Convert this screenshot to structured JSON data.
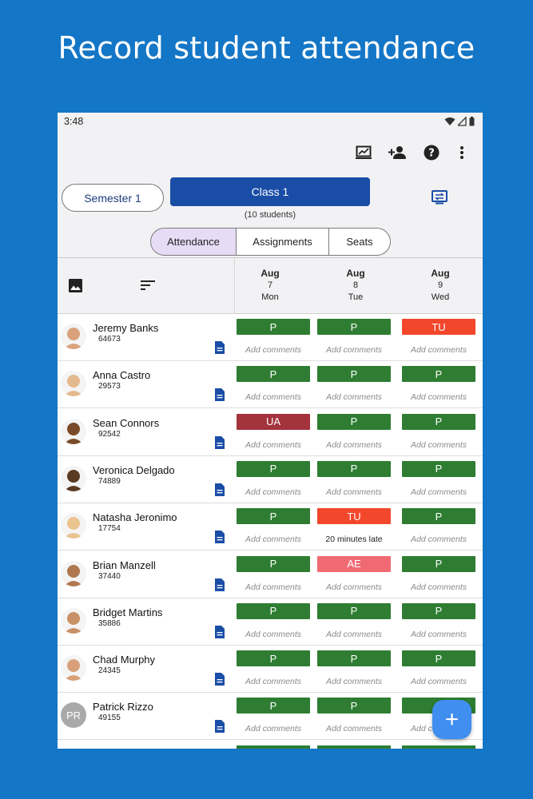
{
  "headline": "Record student attendance",
  "status_bar": {
    "time": "3:48"
  },
  "toolbar": {
    "icons": [
      "report-chart-icon",
      "add-person-icon",
      "help-icon",
      "more-vert-icon"
    ]
  },
  "selectors": {
    "semester": "Semester 1",
    "class": "Class 1",
    "student_count": "(10 students)"
  },
  "tabs": [
    {
      "label": "Attendance",
      "active": true
    },
    {
      "label": "Assignments",
      "active": false
    },
    {
      "label": "Seats",
      "active": false
    }
  ],
  "dates": [
    {
      "month": "Aug",
      "day": "7",
      "weekday": "Mon"
    },
    {
      "month": "Aug",
      "day": "8",
      "weekday": "Tue"
    },
    {
      "month": "Aug",
      "day": "9",
      "weekday": "Wed"
    }
  ],
  "status_colors": {
    "P": "#2e7d32",
    "TU": "#f2472b",
    "UA": "#a3333d",
    "AE": "#f06a74"
  },
  "students": [
    {
      "name": "Jeremy Banks",
      "id": "64673",
      "avatar": "photo",
      "avatar_color": "#d9a27c",
      "days": [
        {
          "status": "P",
          "comment": "Add comments"
        },
        {
          "status": "P",
          "comment": "Add comments"
        },
        {
          "status": "TU",
          "comment": "Add comments"
        }
      ]
    },
    {
      "name": "Anna Castro",
      "id": "29573",
      "avatar": "photo",
      "avatar_color": "#e3b98e",
      "days": [
        {
          "status": "P",
          "comment": "Add comments"
        },
        {
          "status": "P",
          "comment": "Add comments"
        },
        {
          "status": "P",
          "comment": "Add comments"
        }
      ]
    },
    {
      "name": "Sean Connors",
      "id": "92542",
      "avatar": "photo",
      "avatar_color": "#7a4b2a",
      "days": [
        {
          "status": "UA",
          "comment": "Add comments"
        },
        {
          "status": "P",
          "comment": "Add comments"
        },
        {
          "status": "P",
          "comment": "Add comments"
        }
      ]
    },
    {
      "name": "Veronica Delgado",
      "id": "74889",
      "avatar": "photo",
      "avatar_color": "#5a3a22",
      "days": [
        {
          "status": "P",
          "comment": "Add comments"
        },
        {
          "status": "P",
          "comment": "Add comments"
        },
        {
          "status": "P",
          "comment": "Add comments"
        }
      ]
    },
    {
      "name": "Natasha Jeronimo",
      "id": "17754",
      "avatar": "photo",
      "avatar_color": "#e9c48f",
      "days": [
        {
          "status": "P",
          "comment": "Add comments"
        },
        {
          "status": "TU",
          "comment": "20 minutes late"
        },
        {
          "status": "P",
          "comment": "Add comments"
        }
      ]
    },
    {
      "name": "Brian Manzell",
      "id": "37440",
      "avatar": "photo",
      "avatar_color": "#b07850",
      "days": [
        {
          "status": "P",
          "comment": "Add comments"
        },
        {
          "status": "AE",
          "comment": "Add comments"
        },
        {
          "status": "P",
          "comment": "Add comments"
        }
      ]
    },
    {
      "name": "Bridget Martins",
      "id": "35886",
      "avatar": "photo",
      "avatar_color": "#c89066",
      "days": [
        {
          "status": "P",
          "comment": "Add comments"
        },
        {
          "status": "P",
          "comment": "Add comments"
        },
        {
          "status": "P",
          "comment": "Add comments"
        }
      ]
    },
    {
      "name": "Chad Murphy",
      "id": "24345",
      "avatar": "photo",
      "avatar_color": "#d8a07a",
      "days": [
        {
          "status": "P",
          "comment": "Add comments"
        },
        {
          "status": "P",
          "comment": "Add comments"
        },
        {
          "status": "P",
          "comment": "Add comments"
        }
      ]
    },
    {
      "name": "Patrick Rizzo",
      "id": "49155",
      "avatar": "initials",
      "initials": "PR",
      "avatar_color": "#a9a9a9",
      "days": [
        {
          "status": "P",
          "comment": "Add comments"
        },
        {
          "status": "P",
          "comment": "Add comments"
        },
        {
          "status": "P",
          "comment": "Add comments"
        }
      ]
    }
  ],
  "fab": {
    "icon": "plus-icon",
    "label": "+"
  }
}
